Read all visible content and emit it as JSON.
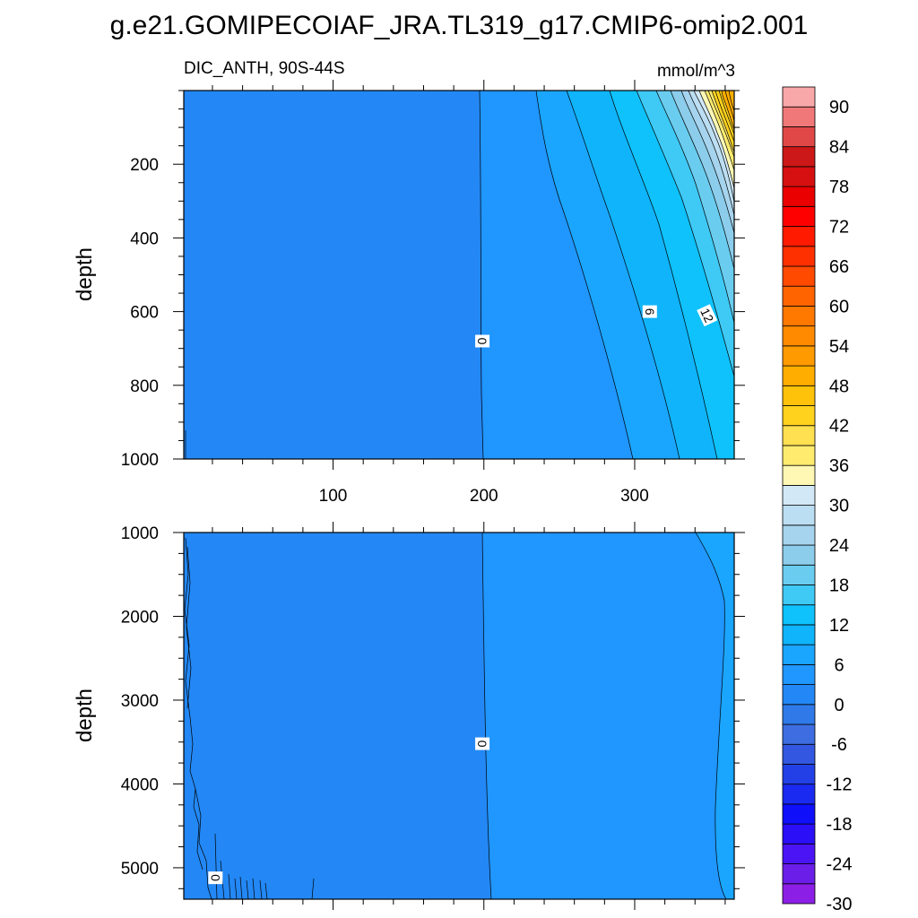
{
  "title": "g.e21.GOMIPECOIAF_JRA.TL319_g17.CMIP6-omip2.001",
  "colorbar": {
    "levels": [
      -30,
      -27,
      -24,
      -21,
      -18,
      -15,
      -12,
      -9,
      -6,
      -3,
      0,
      3,
      6,
      9,
      12,
      15,
      18,
      21,
      24,
      27,
      30,
      33,
      36,
      39,
      42,
      45,
      48,
      51,
      54,
      57,
      60,
      63,
      66,
      69,
      72,
      75,
      78,
      81,
      84,
      87,
      90,
      93
    ],
    "labels": [
      "90",
      "84",
      "78",
      "72",
      "66",
      "60",
      "54",
      "48",
      "42",
      "36",
      "30",
      "24",
      "18",
      "12",
      "6",
      "0",
      "-6",
      "-12",
      "-18",
      "-24",
      "-30"
    ],
    "colors": [
      "#8c1fe6",
      "#6a1ee8",
      "#4b14f5",
      "#2a0ff7",
      "#0f0ffa",
      "#1a2af0",
      "#2340e6",
      "#3357e0",
      "#3d6de0",
      "#2f7ae8",
      "#2388f5",
      "#2096ff",
      "#1aa6ff",
      "#10b4fb",
      "#0fc2fb",
      "#3fc9f5",
      "#6acdef",
      "#8ccdeb",
      "#a6d4ee",
      "#bcdef2",
      "#d2e8f6",
      "#fff8b4",
      "#ffeb6e",
      "#ffe050",
      "#ffd21e",
      "#ffc20a",
      "#ffae00",
      "#ff9a00",
      "#ff8a00",
      "#ff7800",
      "#ff6400",
      "#ff4a00",
      "#ff3000",
      "#ff1a00",
      "#ff0000",
      "#ea0000",
      "#d61010",
      "#cc1818",
      "#e04848",
      "#f07878",
      "#f8a8a8"
    ]
  },
  "chart_data": [
    {
      "type": "contour",
      "subtitle_left": "DIC_ANTH, 90S-44S",
      "subtitle_right": "mmol/m^3",
      "ylabel": "depth",
      "xlim": [
        1,
        366
      ],
      "ylim": [
        0,
        1000
      ],
      "y_reversed": true,
      "xticks": [
        100,
        200,
        300
      ],
      "yticks": [
        200,
        400,
        600,
        800,
        1000
      ],
      "contour_labels": [
        {
          "text": "0",
          "x": 199,
          "y": 680
        },
        {
          "text": "6",
          "x": 310,
          "y": 600
        },
        {
          "text": "12",
          "x": 348,
          "y": 610
        }
      ]
    },
    {
      "type": "contour",
      "ylabel": "depth",
      "xlim": [
        1,
        366
      ],
      "ylim": [
        1000,
        5375
      ],
      "y_reversed": true,
      "yticks": [
        1000,
        2000,
        3000,
        4000,
        5000
      ],
      "contour_labels": [
        {
          "text": "0",
          "x": 199,
          "y": 3520
        },
        {
          "text": "0",
          "x": 22,
          "y": 5120
        }
      ]
    }
  ]
}
